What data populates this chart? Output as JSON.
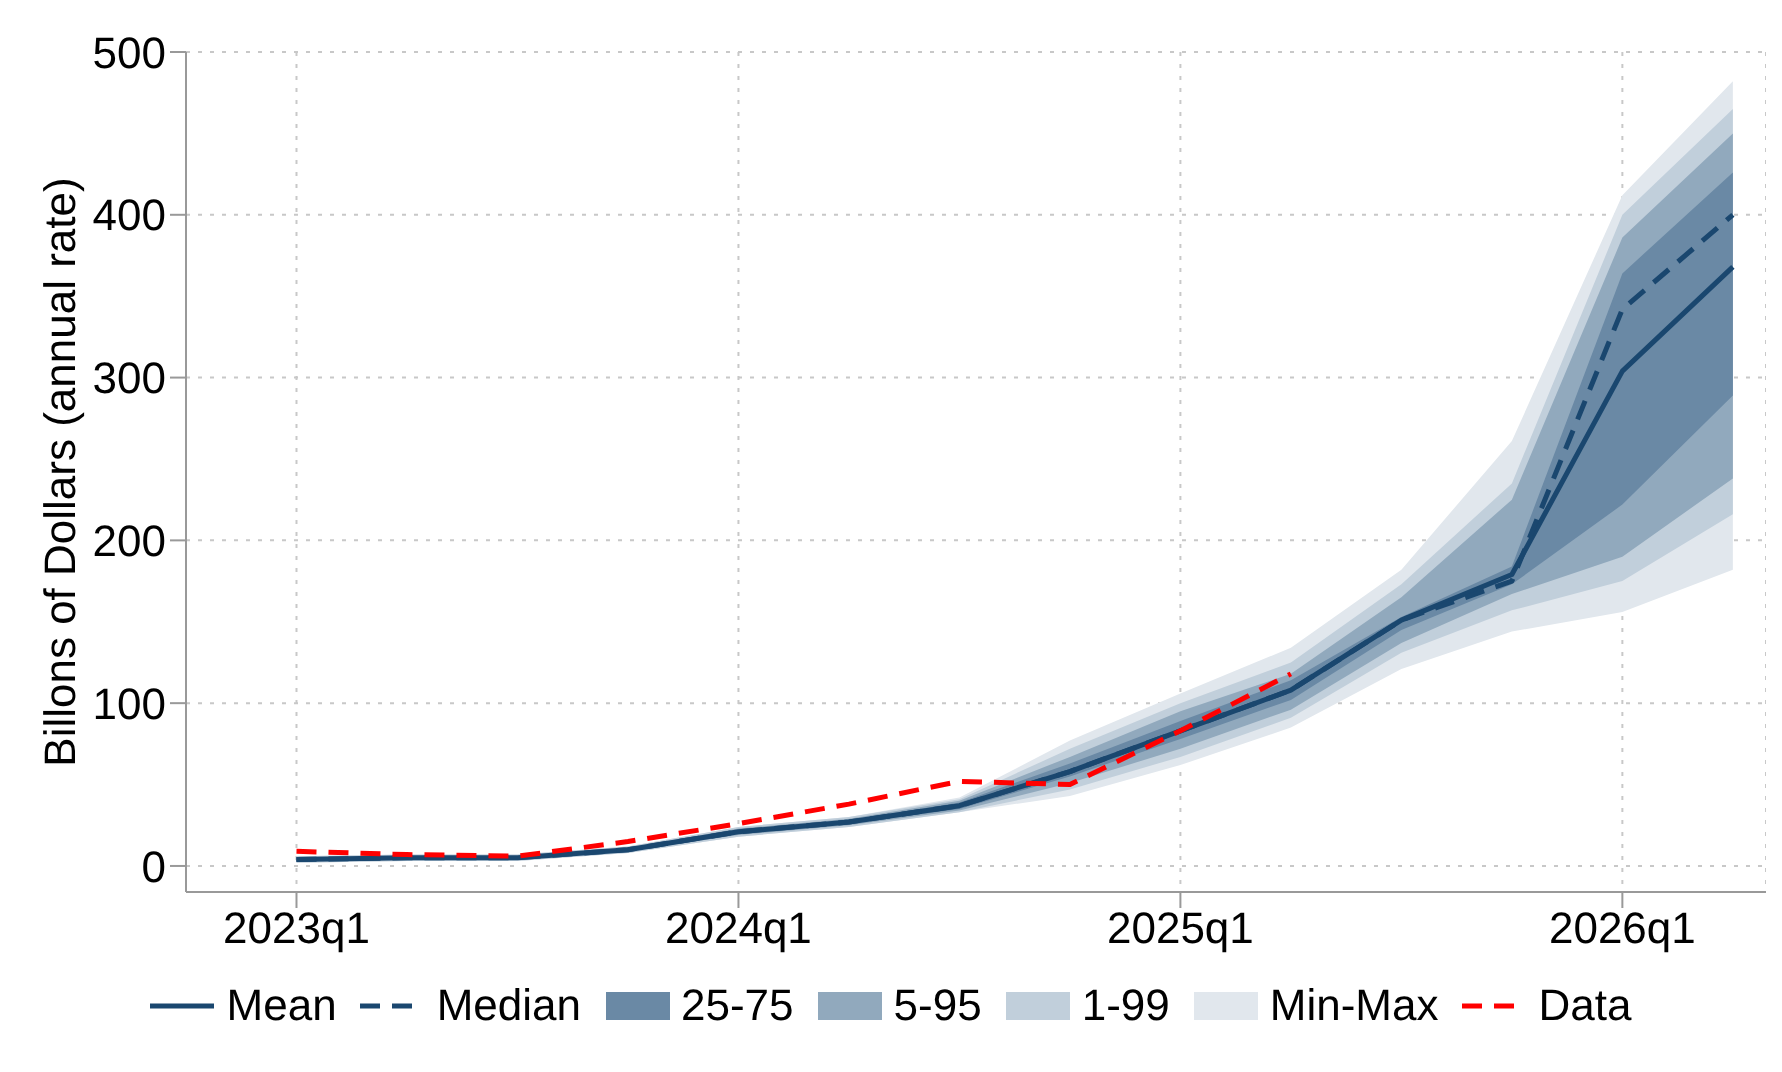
{
  "chart_data": {
    "type": "line",
    "ylabel": "Billons of Dollars (annual rate)",
    "categories": [
      "2023q1",
      null,
      null,
      null,
      "2024q1",
      null,
      null,
      null,
      "2025q1",
      null,
      null,
      null,
      "2026q1",
      null
    ],
    "ylim": [
      -16,
      500
    ],
    "yticks": [
      0,
      100,
      200,
      300,
      400,
      500
    ],
    "grid": true,
    "legend": "bottom",
    "series": [
      {
        "name": "Mean",
        "color": "#1a476f",
        "line_style": "solid",
        "values": [
          4,
          5,
          5,
          10,
          21,
          27,
          37,
          58,
          83,
          108,
          151,
          179,
          304,
          368
        ]
      },
      {
        "name": "Median",
        "color": "#1a476f",
        "line_style": "dashed",
        "values": [
          4,
          5,
          5,
          10,
          21,
          27,
          37,
          58,
          83,
          108,
          151,
          175,
          342,
          400
        ]
      },
      {
        "name": "25-75",
        "type": "area",
        "color": "#6a89a5",
        "values": [
          null,
          null,
          null,
          null,
          null,
          null,
          null,
          null,
          null,
          null,
          null,
          null,
          null,
          null
        ],
        "lower": [
          3,
          4,
          4,
          9,
          20,
          26,
          35,
          55,
          78,
          102,
          145,
          173,
          222,
          289
        ],
        "upper": [
          5,
          6,
          6,
          11,
          22,
          28,
          39,
          63,
          89,
          114,
          153,
          184,
          364,
          426
        ]
      },
      {
        "name": "5-95",
        "type": "area",
        "color": "#91a9bd",
        "values": [
          null,
          null,
          null,
          null,
          null,
          null,
          null,
          null,
          null,
          null,
          null,
          null,
          null,
          null
        ],
        "lower": [
          3,
          4,
          4,
          9,
          19,
          25,
          34,
          51,
          72,
          96,
          137,
          167,
          190,
          238
        ],
        "upper": [
          5,
          6,
          6,
          11,
          23,
          29,
          40,
          67,
          95,
          118,
          165,
          225,
          386,
          450
        ]
      },
      {
        "name": "1-99",
        "type": "area",
        "color": "#c1cfdb",
        "values": [
          null,
          null,
          null,
          null,
          null,
          null,
          null,
          null,
          null,
          null,
          null,
          null,
          null,
          null
        ],
        "lower": [
          2,
          3,
          3,
          8,
          18,
          24,
          33,
          47,
          67,
          91,
          131,
          157,
          175,
          216
        ],
        "upper": [
          6,
          7,
          7,
          12,
          24,
          30,
          41,
          72,
          100,
          125,
          173,
          235,
          400,
          465
        ]
      },
      {
        "name": "Min-Max",
        "type": "area",
        "color": "#e1e7ed",
        "values": [
          null,
          null,
          null,
          null,
          null,
          null,
          null,
          null,
          null,
          null,
          null,
          null,
          null,
          null
        ],
        "lower": [
          2,
          3,
          3,
          8,
          18,
          24,
          33,
          43,
          62,
          85,
          121,
          144,
          156,
          182
        ],
        "upper": [
          6,
          7,
          7,
          12,
          24,
          30,
          42,
          77,
          106,
          134,
          182,
          261,
          412,
          482
        ]
      },
      {
        "name": "Data",
        "color": "#ff0000",
        "line_style": "dashed",
        "values": [
          9,
          7,
          6,
          15,
          26,
          38,
          52,
          50,
          83,
          118,
          null,
          null,
          null,
          null
        ]
      }
    ]
  }
}
